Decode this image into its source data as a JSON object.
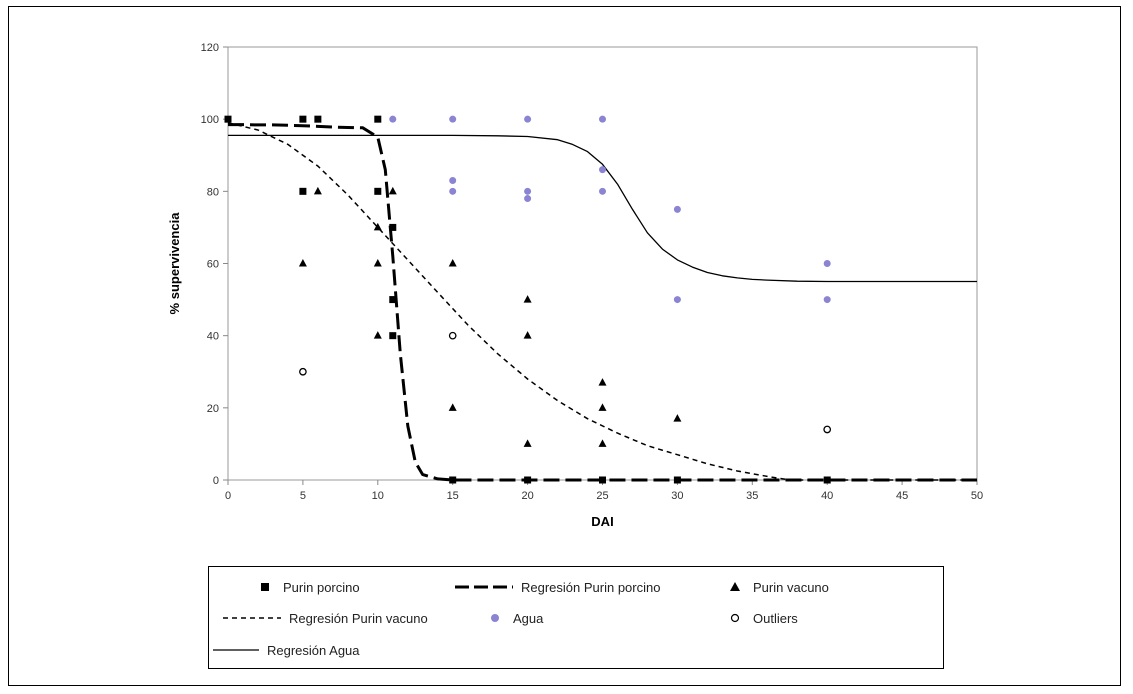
{
  "chart_data": {
    "type": "scatter",
    "xlabel": "DAI",
    "ylabel": "% supervivencia",
    "xlim": [
      0,
      50
    ],
    "ylim": [
      0,
      120
    ],
    "xticks": [
      0,
      5,
      10,
      15,
      20,
      25,
      30,
      35,
      40,
      45,
      50
    ],
    "yticks": [
      0,
      20,
      40,
      60,
      80,
      100,
      120
    ],
    "grid": false,
    "legend_position": "bottom",
    "series": [
      {
        "name": "Purin porcino",
        "kind": "points",
        "marker": "square",
        "color": "#000000",
        "points": [
          [
            0,
            100
          ],
          [
            5,
            100
          ],
          [
            6,
            100
          ],
          [
            5,
            80
          ],
          [
            10,
            100
          ],
          [
            10,
            80
          ],
          [
            11,
            70
          ],
          [
            11,
            50
          ],
          [
            11,
            40
          ],
          [
            15,
            0
          ],
          [
            20,
            0
          ],
          [
            25,
            0
          ],
          [
            30,
            0
          ],
          [
            40,
            0
          ]
        ]
      },
      {
        "name": "Regresión Purin porcino",
        "kind": "line",
        "style": "long-dash",
        "color": "#000000",
        "points": [
          [
            0,
            98.5
          ],
          [
            1,
            98.5
          ],
          [
            2,
            98.4
          ],
          [
            3,
            98.4
          ],
          [
            4,
            98.3
          ],
          [
            5,
            98.2
          ],
          [
            6,
            98.0
          ],
          [
            7,
            97.8
          ],
          [
            8,
            97.7
          ],
          [
            9,
            97.6
          ],
          [
            10,
            95.0
          ],
          [
            10.5,
            86
          ],
          [
            11,
            62
          ],
          [
            11.5,
            35
          ],
          [
            12,
            15
          ],
          [
            12.5,
            5
          ],
          [
            13,
            1.5
          ],
          [
            14,
            0.3
          ],
          [
            15,
            0
          ],
          [
            20,
            0
          ],
          [
            25,
            0
          ],
          [
            30,
            0
          ],
          [
            35,
            0
          ],
          [
            40,
            0
          ],
          [
            45,
            0
          ],
          [
            50,
            0
          ]
        ]
      },
      {
        "name": "Purin vacuno",
        "kind": "points",
        "marker": "triangle",
        "color": "#000000",
        "points": [
          [
            5,
            60
          ],
          [
            6,
            80
          ],
          [
            10,
            70
          ],
          [
            10,
            60
          ],
          [
            10,
            40
          ],
          [
            11,
            80
          ],
          [
            15,
            60
          ],
          [
            15,
            20
          ],
          [
            20,
            50
          ],
          [
            20,
            40
          ],
          [
            20,
            10
          ],
          [
            25,
            27
          ],
          [
            25,
            20
          ],
          [
            25,
            10
          ],
          [
            30,
            17
          ]
        ]
      },
      {
        "name": "Regresión Purin vacuno",
        "kind": "line",
        "style": "short-dash",
        "color": "#000000",
        "points": [
          [
            0,
            99
          ],
          [
            2,
            97
          ],
          [
            4,
            93
          ],
          [
            6,
            87
          ],
          [
            8,
            79
          ],
          [
            10,
            70
          ],
          [
            12,
            61
          ],
          [
            14,
            52
          ],
          [
            16,
            43
          ],
          [
            18,
            35
          ],
          [
            20,
            28
          ],
          [
            22,
            22
          ],
          [
            24,
            17
          ],
          [
            26,
            13
          ],
          [
            28,
            9.5
          ],
          [
            30,
            7
          ],
          [
            32,
            4.5
          ],
          [
            34,
            2.5
          ],
          [
            36,
            1
          ],
          [
            37.5,
            0
          ],
          [
            40,
            0
          ],
          [
            45,
            0
          ],
          [
            50,
            0
          ]
        ]
      },
      {
        "name": "Agua",
        "kind": "points",
        "marker": "circle",
        "color": "#8b84d3",
        "points": [
          [
            11,
            100
          ],
          [
            15,
            100
          ],
          [
            20,
            100
          ],
          [
            25,
            100
          ],
          [
            15,
            83
          ],
          [
            15,
            80
          ],
          [
            20,
            80
          ],
          [
            20,
            78
          ],
          [
            25,
            86
          ],
          [
            25,
            80
          ],
          [
            30,
            75
          ],
          [
            30,
            50
          ],
          [
            40,
            60
          ],
          [
            40,
            50
          ]
        ]
      },
      {
        "name": "Outliers",
        "kind": "points",
        "marker": "open-circle",
        "color": "#000000",
        "points": [
          [
            5,
            30
          ],
          [
            15,
            40
          ],
          [
            40,
            14
          ]
        ]
      },
      {
        "name": "Regresión Agua",
        "kind": "line",
        "style": "solid",
        "color": "#000000",
        "points": [
          [
            0,
            95.5
          ],
          [
            5,
            95.5
          ],
          [
            10,
            95.5
          ],
          [
            15,
            95.5
          ],
          [
            18,
            95.4
          ],
          [
            20,
            95.2
          ],
          [
            22,
            94.3
          ],
          [
            23,
            93
          ],
          [
            24,
            91
          ],
          [
            25,
            87.5
          ],
          [
            26,
            82
          ],
          [
            27,
            75
          ],
          [
            28,
            68.5
          ],
          [
            29,
            64
          ],
          [
            30,
            61
          ],
          [
            31,
            59
          ],
          [
            32,
            57.5
          ],
          [
            33,
            56.6
          ],
          [
            34,
            56
          ],
          [
            35,
            55.6
          ],
          [
            36,
            55.4
          ],
          [
            38,
            55.1
          ],
          [
            40,
            55
          ],
          [
            45,
            55
          ],
          [
            50,
            55
          ]
        ]
      }
    ]
  },
  "legend": {
    "items": [
      {
        "label": "Purin porcino"
      },
      {
        "label": "Regresión Purin porcino"
      },
      {
        "label": "Purin vacuno"
      },
      {
        "label": "Regresión Purin vacuno"
      },
      {
        "label": "Agua"
      },
      {
        "label": "Outliers"
      },
      {
        "label": "Regresión Agua"
      }
    ]
  }
}
